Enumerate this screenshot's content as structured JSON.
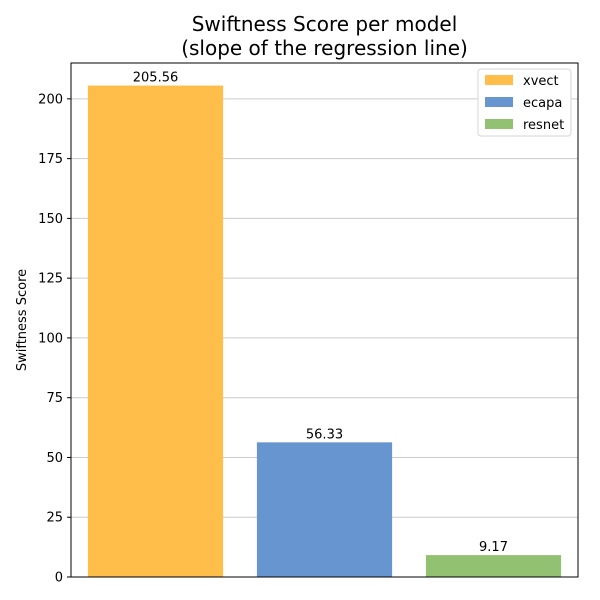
{
  "chart_data": {
    "type": "bar",
    "title": "Swiftness Score per model\n(slope of the regression line)",
    "xlabel": "",
    "ylabel": "Swiftness Score",
    "ylim": [
      0,
      215
    ],
    "yticks": [
      0,
      25,
      50,
      75,
      100,
      125,
      150,
      175,
      200
    ],
    "grid": "y",
    "legend": "top-right",
    "bars": [
      {
        "name": "xvect",
        "value": 205.56,
        "label": "205.56",
        "color": "#ffbd4a"
      },
      {
        "name": "ecapa",
        "value": 56.33,
        "label": "56.33",
        "color": "#6795d0"
      },
      {
        "name": "resnet",
        "value": 9.17,
        "label": "9.17",
        "color": "#93c172"
      }
    ]
  }
}
